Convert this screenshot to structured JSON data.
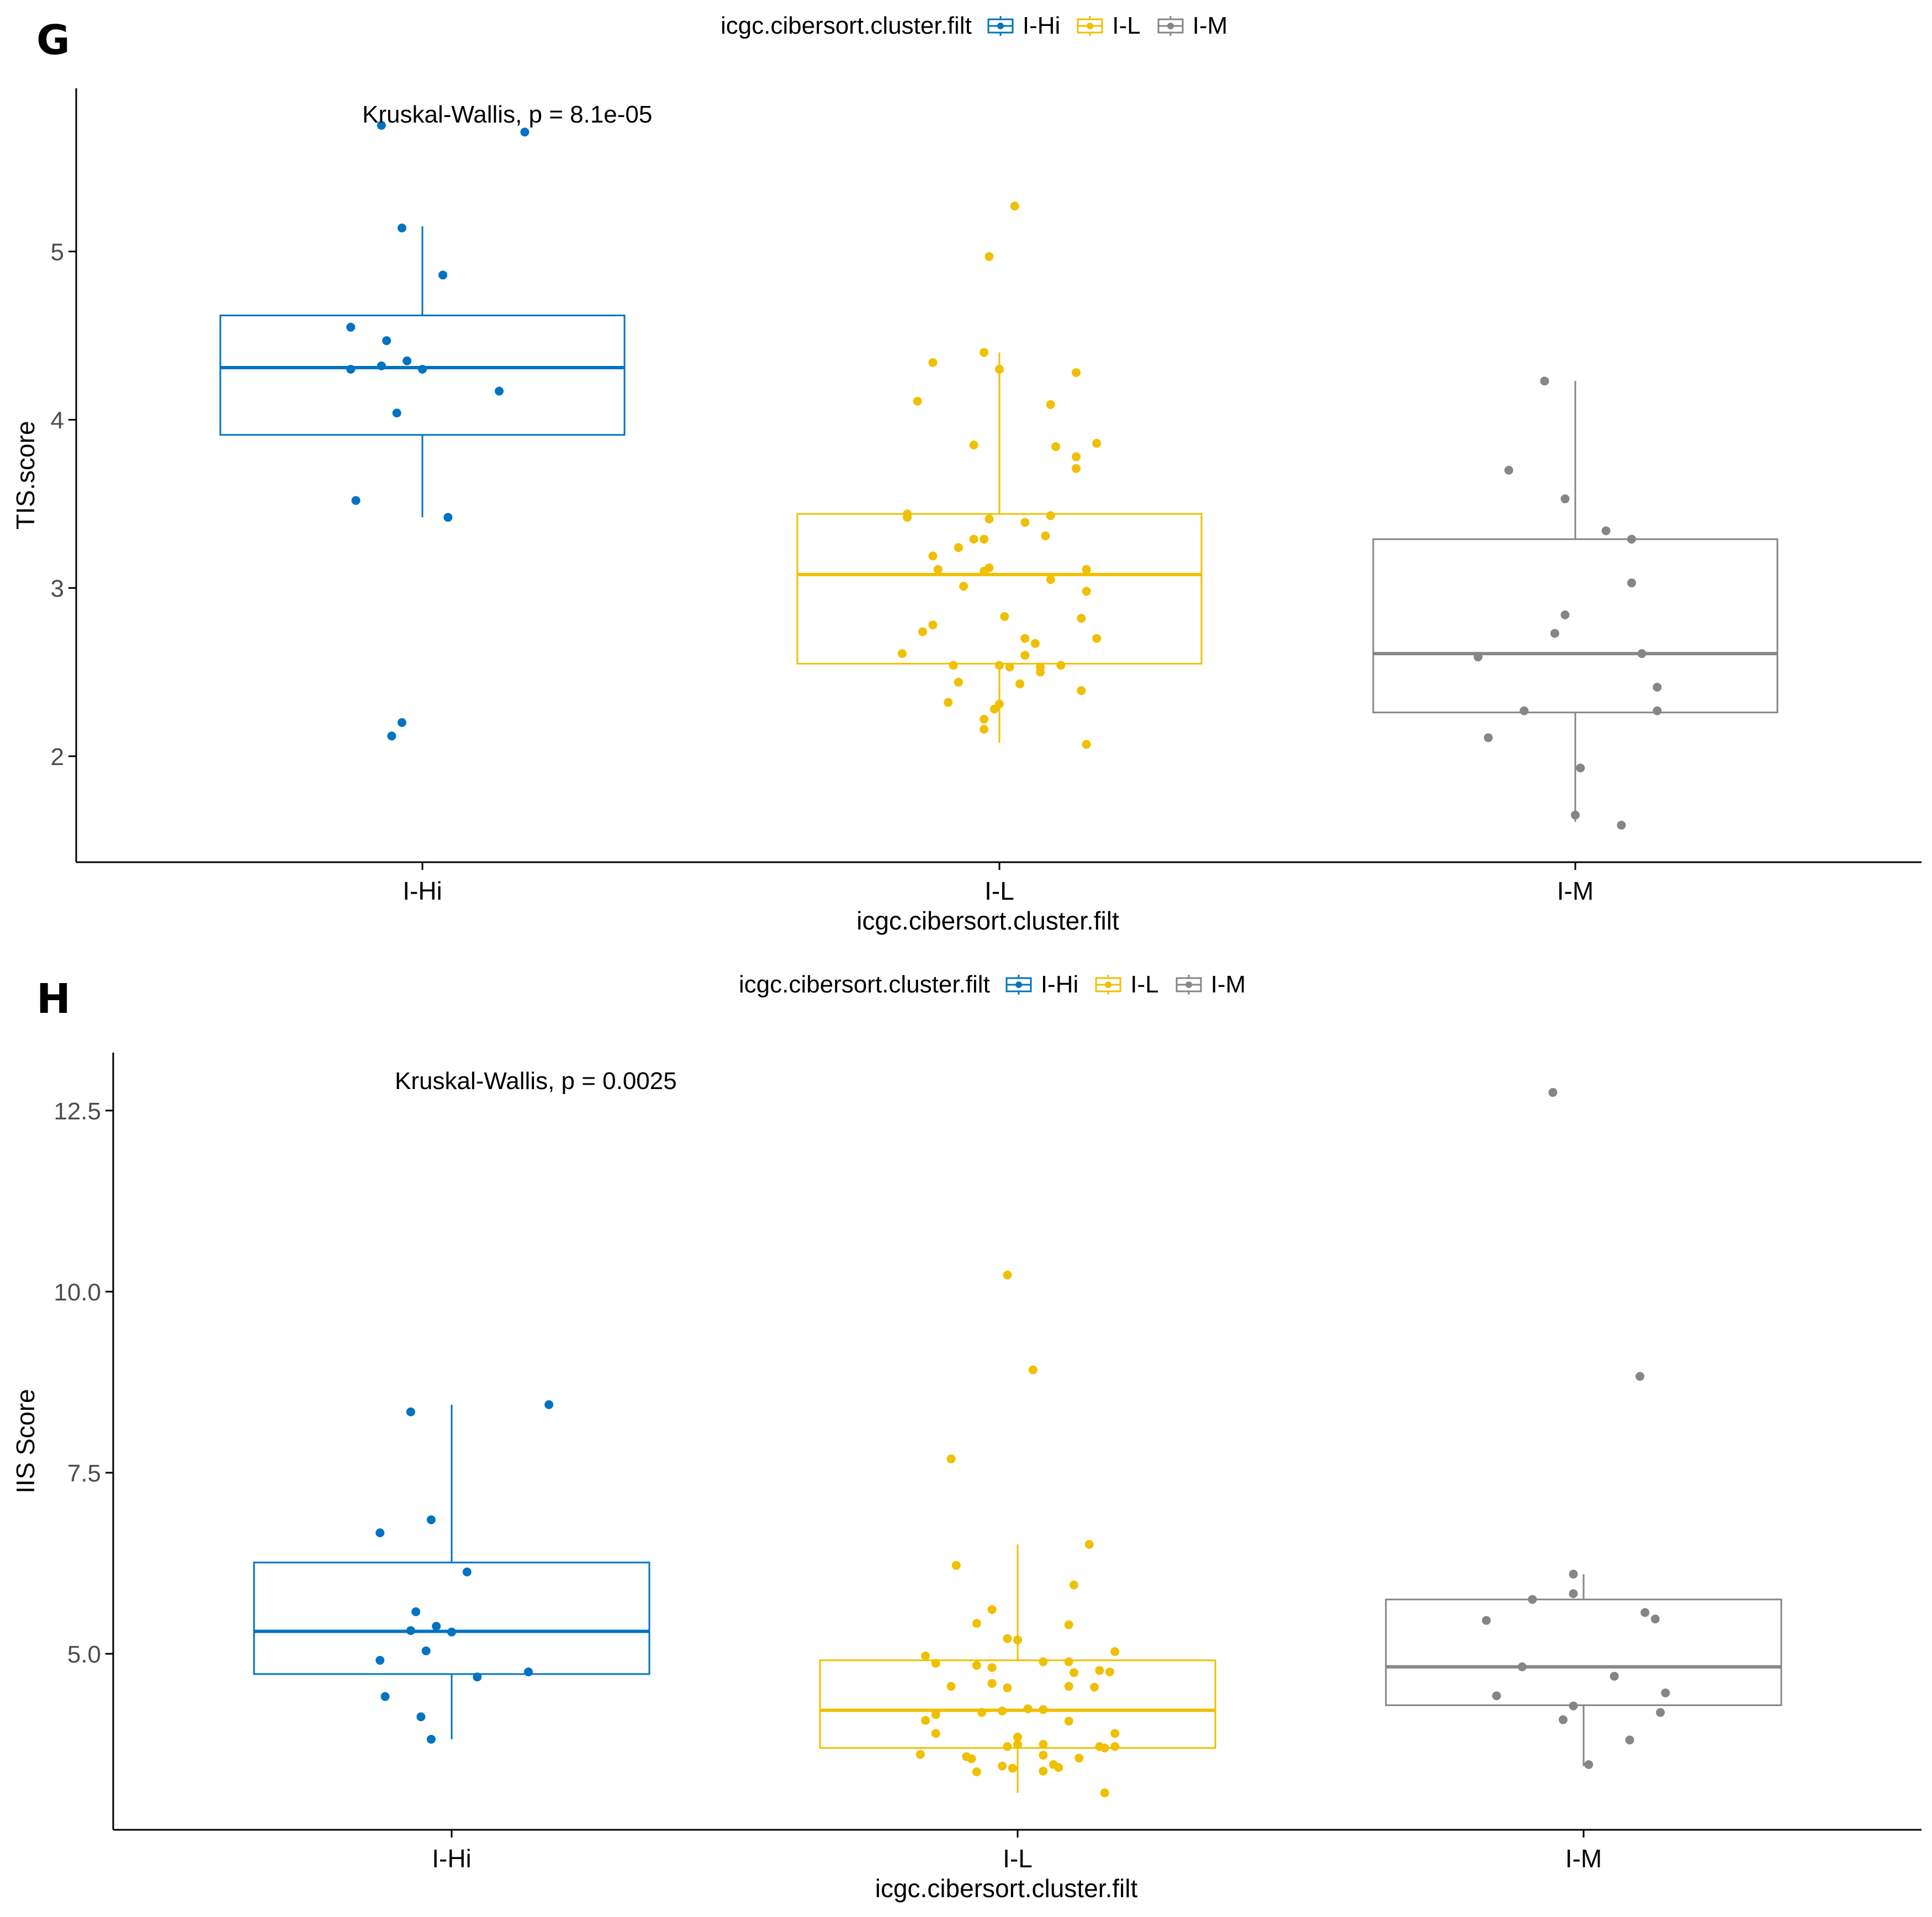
{
  "legend_title": "icgc.cibersort.cluster.filt",
  "colors": {
    "I-Hi": "#0073C2",
    "I-L": "#EFC000",
    "I-M": "#868686"
  },
  "chart_data": [
    {
      "panel": "G",
      "type": "box",
      "title": "",
      "xlabel": "icgc.cibersort.cluster.filt",
      "ylabel": "TIS.score",
      "annotation": "Kruskal-Wallis, p = 8.1e-05",
      "categories": [
        "I-Hi",
        "I-L",
        "I-M"
      ],
      "ylim": [
        1.37,
        5.97
      ],
      "yticks": [
        2,
        3,
        4,
        5
      ],
      "ytick_labels": [
        "2",
        "3",
        "4",
        "5"
      ],
      "legend": [
        "I-Hi",
        "I-L",
        "I-M"
      ],
      "boxes": [
        {
          "name": "I-Hi",
          "q1": 3.91,
          "median": 4.31,
          "q3": 4.62,
          "lower_whisker": 3.42,
          "upper_whisker": 5.15
        },
        {
          "name": "I-L",
          "q1": 2.55,
          "median": 3.08,
          "q3": 3.44,
          "lower_whisker": 2.08,
          "upper_whisker": 4.4
        },
        {
          "name": "I-M",
          "q1": 2.26,
          "median": 2.61,
          "q3": 3.29,
          "lower_whisker": 1.61,
          "upper_whisker": 4.23
        }
      ],
      "points": [
        [
          [
            -0.08,
            5.75
          ],
          [
            0.2,
            5.71
          ],
          [
            -0.04,
            5.14
          ],
          [
            0.04,
            4.86
          ],
          [
            -0.14,
            4.55
          ],
          [
            -0.07,
            4.47
          ],
          [
            -0.03,
            4.35
          ],
          [
            -0.08,
            4.32
          ],
          [
            0.0,
            4.3
          ],
          [
            -0.14,
            4.3
          ],
          [
            0.15,
            4.17
          ],
          [
            -0.05,
            4.04
          ],
          [
            -0.13,
            3.52
          ],
          [
            0.05,
            3.42
          ],
          [
            -0.04,
            2.2
          ],
          [
            -0.06,
            2.12
          ]
        ],
        [
          [
            0.03,
            5.27
          ],
          [
            -0.02,
            4.97
          ],
          [
            -0.13,
            4.34
          ],
          [
            -0.03,
            4.4
          ],
          [
            0.0,
            4.3
          ],
          [
            0.15,
            4.28
          ],
          [
            -0.16,
            4.11
          ],
          [
            0.1,
            4.09
          ],
          [
            0.19,
            3.86
          ],
          [
            -0.05,
            3.85
          ],
          [
            0.11,
            3.84
          ],
          [
            0.15,
            3.78
          ],
          [
            0.15,
            3.71
          ],
          [
            -0.18,
            3.44
          ],
          [
            -0.18,
            3.42
          ],
          [
            0.1,
            3.43
          ],
          [
            -0.02,
            3.41
          ],
          [
            0.05,
            3.39
          ],
          [
            0.09,
            3.31
          ],
          [
            -0.03,
            3.29
          ],
          [
            -0.05,
            3.29
          ],
          [
            -0.08,
            3.24
          ],
          [
            -0.13,
            3.19
          ],
          [
            -0.12,
            3.11
          ],
          [
            -0.03,
            3.1
          ],
          [
            -0.02,
            3.12
          ],
          [
            0.17,
            3.11
          ],
          [
            0.1,
            3.05
          ],
          [
            -0.07,
            3.01
          ],
          [
            0.17,
            2.98
          ],
          [
            0.01,
            2.83
          ],
          [
            0.16,
            2.82
          ],
          [
            -0.13,
            2.78
          ],
          [
            -0.15,
            2.74
          ],
          [
            0.05,
            2.7
          ],
          [
            0.07,
            2.67
          ],
          [
            0.19,
            2.7
          ],
          [
            -0.19,
            2.61
          ],
          [
            0.05,
            2.6
          ],
          [
            -0.09,
            2.54
          ],
          [
            0.0,
            2.54
          ],
          [
            0.02,
            2.53
          ],
          [
            0.08,
            2.53
          ],
          [
            0.12,
            2.54
          ],
          [
            0.08,
            2.5
          ],
          [
            -0.08,
            2.44
          ],
          [
            0.04,
            2.43
          ],
          [
            0.16,
            2.39
          ],
          [
            -0.1,
            2.32
          ],
          [
            0.0,
            2.31
          ],
          [
            -0.01,
            2.28
          ],
          [
            -0.03,
            2.22
          ],
          [
            -0.03,
            2.16
          ],
          [
            0.17,
            2.07
          ]
        ],
        [
          [
            -0.06,
            4.23
          ],
          [
            -0.13,
            3.7
          ],
          [
            -0.02,
            3.53
          ],
          [
            0.06,
            3.34
          ],
          [
            0.11,
            3.29
          ],
          [
            0.11,
            3.03
          ],
          [
            -0.02,
            2.84
          ],
          [
            -0.04,
            2.73
          ],
          [
            0.13,
            2.61
          ],
          [
            -0.19,
            2.59
          ],
          [
            0.16,
            2.41
          ],
          [
            -0.1,
            2.27
          ],
          [
            0.16,
            2.27
          ],
          [
            -0.17,
            2.11
          ],
          [
            0.01,
            1.93
          ],
          [
            0.0,
            1.65
          ],
          [
            0.09,
            1.59
          ]
        ]
      ]
    },
    {
      "panel": "H",
      "type": "box",
      "title": "",
      "xlabel": "icgc.cibersort.cluster.filt",
      "ylabel": "IIS Score",
      "annotation": "Kruskal-Wallis, p = 0.0025",
      "categories": [
        "I-Hi",
        "I-L",
        "I-M"
      ],
      "ylim": [
        2.57,
        13.3
      ],
      "yticks": [
        5.0,
        7.5,
        10.0,
        12.5
      ],
      "ytick_labels": [
        "5.0",
        "7.5",
        "10.0",
        "12.5"
      ],
      "legend": [
        "I-Hi",
        "I-L",
        "I-M"
      ],
      "boxes": [
        {
          "name": "I-Hi",
          "q1": 4.72,
          "median": 5.31,
          "q3": 6.26,
          "lower_whisker": 3.82,
          "upper_whisker": 8.44
        },
        {
          "name": "I-L",
          "q1": 3.7,
          "median": 4.22,
          "q3": 4.91,
          "lower_whisker": 3.08,
          "upper_whisker": 6.51
        },
        {
          "name": "I-M",
          "q1": 4.29,
          "median": 4.82,
          "q3": 5.75,
          "lower_whisker": 3.45,
          "upper_whisker": 6.1
        }
      ],
      "points": [
        [
          [
            0.19,
            8.44
          ],
          [
            -0.08,
            8.34
          ],
          [
            -0.04,
            6.85
          ],
          [
            -0.14,
            6.67
          ],
          [
            0.03,
            6.13
          ],
          [
            -0.07,
            5.58
          ],
          [
            -0.08,
            5.32
          ],
          [
            -0.03,
            5.38
          ],
          [
            0.0,
            5.3
          ],
          [
            -0.05,
            5.04
          ],
          [
            -0.14,
            4.91
          ],
          [
            0.15,
            4.75
          ],
          [
            0.05,
            4.68
          ],
          [
            -0.13,
            4.41
          ],
          [
            -0.06,
            4.13
          ],
          [
            -0.04,
            3.82
          ]
        ],
        [
          [
            -0.02,
            10.23
          ],
          [
            0.03,
            8.92
          ],
          [
            -0.13,
            7.69
          ],
          [
            -0.12,
            6.22
          ],
          [
            0.14,
            6.51
          ],
          [
            0.11,
            5.95
          ],
          [
            -0.05,
            5.61
          ],
          [
            -0.08,
            5.42
          ],
          [
            0.1,
            5.4
          ],
          [
            -0.02,
            5.21
          ],
          [
            0.0,
            5.19
          ],
          [
            0.19,
            5.03
          ],
          [
            -0.18,
            4.97
          ],
          [
            -0.16,
            4.87
          ],
          [
            0.05,
            4.89
          ],
          [
            0.1,
            4.89
          ],
          [
            -0.05,
            4.81
          ],
          [
            -0.08,
            4.84
          ],
          [
            0.16,
            4.77
          ],
          [
            0.18,
            4.75
          ],
          [
            0.11,
            4.74
          ],
          [
            -0.13,
            4.55
          ],
          [
            -0.05,
            4.59
          ],
          [
            -0.02,
            4.53
          ],
          [
            0.1,
            4.55
          ],
          [
            0.15,
            4.54
          ],
          [
            -0.03,
            4.21
          ],
          [
            0.05,
            4.23
          ],
          [
            -0.16,
            4.16
          ],
          [
            -0.07,
            4.19
          ],
          [
            0.02,
            4.24
          ],
          [
            -0.18,
            4.08
          ],
          [
            0.1,
            4.07
          ],
          [
            -0.16,
            3.9
          ],
          [
            0.0,
            3.85
          ],
          [
            0.19,
            3.9
          ],
          [
            0.0,
            3.75
          ],
          [
            -0.02,
            3.72
          ],
          [
            0.05,
            3.75
          ],
          [
            0.16,
            3.72
          ],
          [
            0.17,
            3.7
          ],
          [
            0.19,
            3.72
          ],
          [
            -0.19,
            3.61
          ],
          [
            -0.1,
            3.58
          ],
          [
            0.05,
            3.6
          ],
          [
            0.12,
            3.56
          ],
          [
            -0.09,
            3.55
          ],
          [
            -0.03,
            3.45
          ],
          [
            0.07,
            3.47
          ],
          [
            0.08,
            3.43
          ],
          [
            0.05,
            3.38
          ],
          [
            -0.08,
            3.37
          ],
          [
            -0.01,
            3.42
          ],
          [
            0.17,
            3.08
          ]
        ],
        [
          [
            -0.06,
            12.75
          ],
          [
            0.11,
            8.83
          ],
          [
            -0.02,
            6.1
          ],
          [
            -0.1,
            5.75
          ],
          [
            -0.02,
            5.83
          ],
          [
            0.12,
            5.57
          ],
          [
            0.14,
            5.48
          ],
          [
            -0.19,
            5.46
          ],
          [
            -0.12,
            4.82
          ],
          [
            0.06,
            4.69
          ],
          [
            0.16,
            4.46
          ],
          [
            -0.17,
            4.42
          ],
          [
            -0.02,
            4.28
          ],
          [
            -0.04,
            4.09
          ],
          [
            0.15,
            4.19
          ],
          [
            0.09,
            3.81
          ],
          [
            0.01,
            3.47
          ]
        ]
      ]
    }
  ]
}
